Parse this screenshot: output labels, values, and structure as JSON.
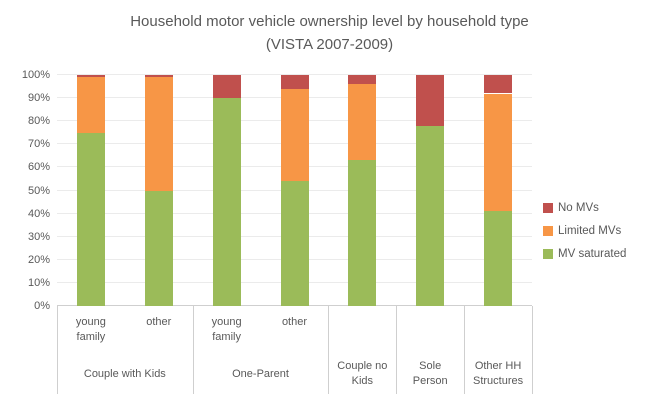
{
  "colors": {
    "no_mvs": "#C0504D",
    "limited_mvs": "#F79646",
    "mv_saturated": "#9BBB59",
    "text": "#595959",
    "gridline": "#EBEBEB",
    "axis_line": "#CFCFCF"
  },
  "chart_data": {
    "type": "bar",
    "stacked": true,
    "unit": "percent",
    "title": "Household motor vehicle ownership level by household type",
    "subtitle": "(VISTA 2007-2009)",
    "ylim": [
      0,
      100
    ],
    "grid": true,
    "y_ticks": [
      "0%",
      "10%",
      "20%",
      "30%",
      "40%",
      "50%",
      "60%",
      "70%",
      "80%",
      "90%",
      "100%"
    ],
    "bar_sublabels": [
      "young\nfamily",
      "other",
      "young\nfamily",
      "other",
      "",
      "",
      ""
    ],
    "groups": [
      {
        "label": "Couple with Kids",
        "span": 2
      },
      {
        "label": "One-Parent",
        "span": 2
      },
      {
        "label": "Couple no\nKids",
        "span": 1
      },
      {
        "label": "Sole\nPerson",
        "span": 1
      },
      {
        "label": "Other HH\nStructures",
        "span": 1
      }
    ],
    "series": [
      {
        "name": "MV saturated",
        "color": "#9BBB59",
        "values": [
          75,
          50,
          90,
          54,
          63,
          78,
          41
        ]
      },
      {
        "name": "Limited MVs",
        "color": "#F79646",
        "values": [
          24,
          49,
          0,
          40,
          33,
          0,
          51
        ]
      },
      {
        "name": "No MVs",
        "color": "#C0504D",
        "values": [
          1,
          1,
          10,
          6,
          4,
          22,
          8
        ]
      }
    ],
    "legend": {
      "position": "right",
      "entries": [
        "No MVs",
        "Limited MVs",
        "MV saturated"
      ]
    }
  }
}
